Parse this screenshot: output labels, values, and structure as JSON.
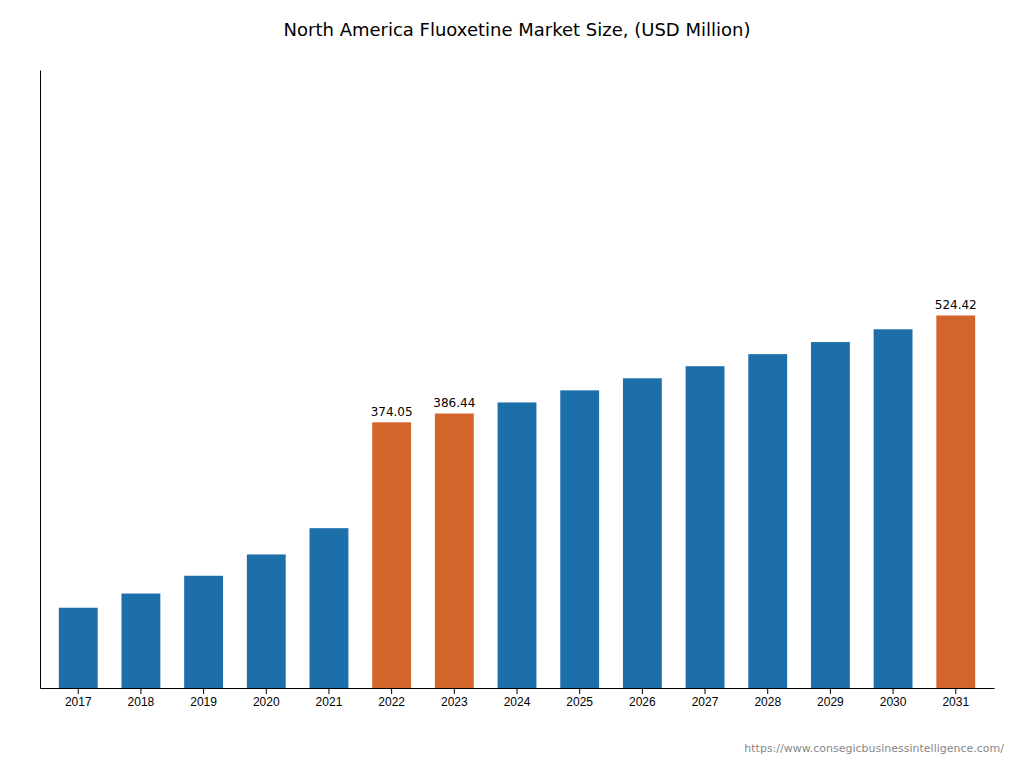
{
  "chart_data": {
    "type": "bar",
    "title": "North America Fluoxetine Market Size, (USD Million)",
    "categories": [
      "2017",
      "2018",
      "2019",
      "2020",
      "2021",
      "2022",
      "2023",
      "2024",
      "2025",
      "2026",
      "2027",
      "2028",
      "2029",
      "2030",
      "2031"
    ],
    "values": [
      113,
      133,
      158,
      188,
      225,
      374.05,
      386.44,
      402,
      419,
      436,
      453,
      470,
      487,
      505,
      524.42
    ],
    "colors": [
      "#1d6faa",
      "#1d6faa",
      "#1d6faa",
      "#1d6faa",
      "#1d6faa",
      "#d4652a",
      "#d4652a",
      "#1d6faa",
      "#1d6faa",
      "#1d6faa",
      "#1d6faa",
      "#1d6faa",
      "#1d6faa",
      "#1d6faa",
      "#d4652a"
    ],
    "annotations": [
      {
        "category": "2022",
        "text": "374.05"
      },
      {
        "category": "2023",
        "text": "386.44"
      },
      {
        "category": "2031",
        "text": "524.42"
      }
    ],
    "source": "https://www.consegicbusinessintelligence.com/",
    "ylim": [
      0,
      870
    ],
    "yticks": [],
    "tick_labels": "x",
    "grid": false
  }
}
